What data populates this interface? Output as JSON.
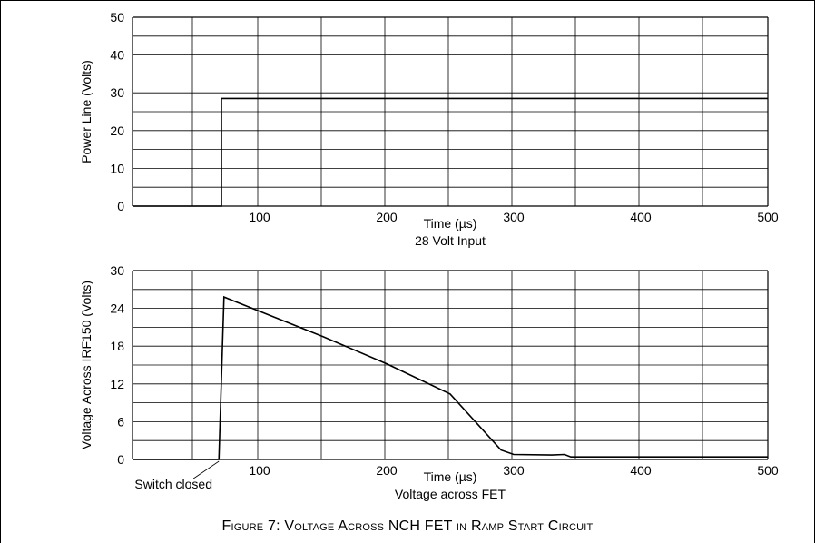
{
  "figure": {
    "caption": "Figure 7: Voltage Across NCH FET in Ramp Start Circuit"
  },
  "chart_data": [
    {
      "type": "line",
      "title": "28 Volt Input",
      "xlabel": "Time (µs)",
      "ylabel": "Power Line (Volts)",
      "xlim": [
        0,
        500
      ],
      "ylim": [
        0,
        50
      ],
      "x_ticks": [
        "100",
        "200",
        "300",
        "400",
        "500"
      ],
      "y_ticks": [
        "0",
        "10",
        "20",
        "30",
        "40",
        "50"
      ],
      "grid": true,
      "series": [
        {
          "x": [
            0,
            70,
            70,
            500
          ],
          "y": [
            0,
            0,
            28.5,
            28.5
          ]
        }
      ],
      "annotations": []
    },
    {
      "type": "line",
      "title": "Voltage across FET",
      "xlabel": "Time (µs)",
      "ylabel": "Voltage Across IRF150 (Volts)",
      "xlim": [
        0,
        500
      ],
      "ylim": [
        0,
        30
      ],
      "x_ticks": [
        "100",
        "200",
        "300",
        "400",
        "500"
      ],
      "y_ticks": [
        "0",
        "6",
        "12",
        "18",
        "24",
        "30"
      ],
      "grid": true,
      "series": [
        {
          "x": [
            0,
            68,
            72,
            150,
            200,
            250,
            290,
            300,
            330,
            340,
            345,
            500
          ],
          "y": [
            0,
            0,
            25.8,
            19.5,
            15.2,
            10.4,
            1.5,
            0.8,
            0.7,
            0.8,
            0.4,
            0.4
          ]
        }
      ],
      "annotations": [
        {
          "text": "Switch closed",
          "x": 68,
          "y": 0
        }
      ]
    }
  ]
}
